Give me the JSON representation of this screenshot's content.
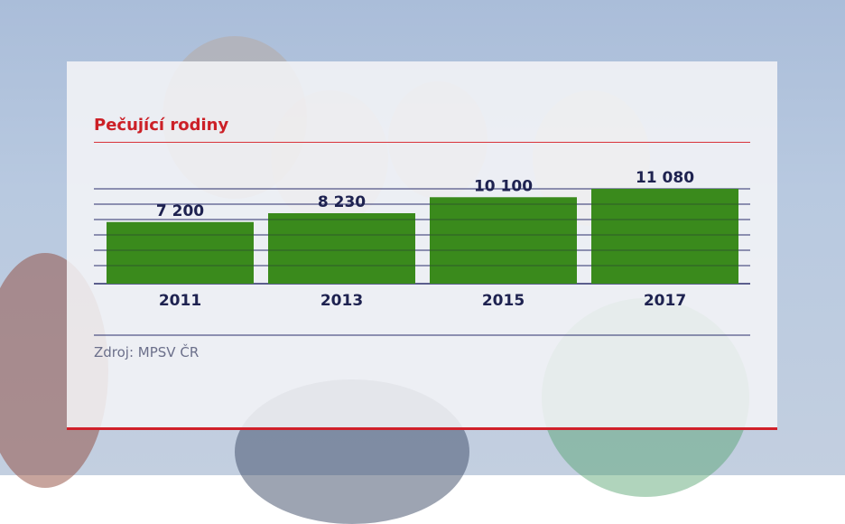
{
  "title": "Pečující rodiny",
  "source": "Zdroj: MPSV ČR",
  "colors": {
    "bar": "#3a8a1c",
    "title": "#cc2027",
    "grid": "#2b2f6b",
    "label": "#1e2250",
    "accent_line": "#d0202a"
  },
  "chart_data": {
    "type": "bar",
    "title": "Pečující rodiny",
    "categories": [
      "2011",
      "2013",
      "2015",
      "2017"
    ],
    "values": [
      7200,
      8230,
      10100,
      11080
    ],
    "value_labels": [
      "7 200",
      "8 230",
      "10 100",
      "11 080"
    ],
    "xlabel": "",
    "ylabel": "",
    "ylim": [
      0,
      12000
    ],
    "grid": true
  }
}
